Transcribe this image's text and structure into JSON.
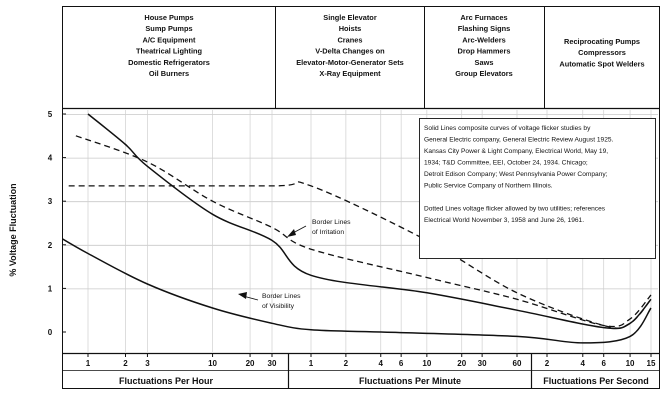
{
  "chart_data": {
    "type": "line",
    "ylabel": "% Voltage Fluctuation",
    "yticks": [
      "0",
      "1",
      "2",
      "3",
      "4",
      "5"
    ],
    "ylim": [
      -0.5,
      5
    ],
    "x_sections": [
      {
        "label": "Fluctuations Per Hour",
        "ticks": [
          "1",
          "2",
          "3",
          "10",
          "20",
          "30"
        ]
      },
      {
        "label": "Fluctuations Per Minute",
        "ticks": [
          "1",
          "2",
          "4",
          "6",
          "10",
          "20",
          "30",
          "60"
        ]
      },
      {
        "label": "Fluctuations Per Second",
        "ticks": [
          "2",
          "4",
          "6",
          "10",
          "15"
        ]
      }
    ],
    "categories": [
      [
        "House Pumps",
        "Sump Pumps",
        "A/C Equipment",
        "Theatrical Lighting",
        "Domestic Refrigerators",
        "Oil Burners"
      ],
      [
        "Single Elevator",
        "Hoists",
        "Cranes",
        "V-Delta Changes on",
        "Elevator-Motor-Generator Sets",
        "X-Ray Equipment"
      ],
      [
        "Arc Furnaces",
        "Flashing Signs",
        "Arc-Welders",
        "Drop Hammers",
        "Saws",
        "Group Elevators"
      ],
      [
        "Reciprocating Pumps",
        "Compressors",
        "Automatic Spot Welders"
      ]
    ],
    "note": [
      "Solid Lines composite curves of voltage flicker studies by",
      "General Electric company, General Electric Review August 1925.",
      "Kansas City Power & Light Company, Electrical World, May 19,",
      "1934; T&D Committee, EEI, October 24, 1934. Chicago;",
      "Detroit Edison Company; West Pennsylvania Power Company;",
      "Public Service Company of Northern Illinois.",
      "",
      "Dotted Lines voltage flicker allowed by two utilities; references",
      "Electrical World November 3, 1958 and June 26, 1961."
    ],
    "annotations": {
      "irritation": [
        "Border Lines",
        "of Irritation"
      ],
      "visibility": [
        "Border Lines",
        "of Visibility"
      ]
    },
    "series": [
      {
        "style": "solid",
        "points": [
          {
            "x": "1/hr",
            "y": 5.0
          },
          {
            "x": "2/hr",
            "y": 4.3
          },
          {
            "x": "3/hr",
            "y": 3.8
          },
          {
            "x": "10/hr",
            "y": 2.7
          },
          {
            "x": "30/hr",
            "y": 2.1
          },
          {
            "x": "1/min",
            "y": 1.3
          },
          {
            "x": "10/min",
            "y": 0.9
          },
          {
            "x": "60/min",
            "y": 0.5
          },
          {
            "x": "6/sec",
            "y": 0.1
          },
          {
            "x": "10/sec",
            "y": 0.2
          },
          {
            "x": "15/sec",
            "y": 0.75
          }
        ]
      },
      {
        "style": "solid",
        "points": [
          {
            "x": "0.5/hr",
            "y": 2.3
          },
          {
            "x": "1/hr",
            "y": 1.8
          },
          {
            "x": "3/hr",
            "y": 1.1
          },
          {
            "x": "10/hr",
            "y": 0.55
          },
          {
            "x": "30/hr",
            "y": 0.2
          },
          {
            "x": "1/min",
            "y": 0.05
          },
          {
            "x": "4/min",
            "y": 0.0
          },
          {
            "x": "60/min",
            "y": -0.1
          },
          {
            "x": "4/sec",
            "y": -0.25
          },
          {
            "x": "10/sec",
            "y": -0.1
          },
          {
            "x": "15/sec",
            "y": 0.55
          }
        ]
      },
      {
        "style": "dashed",
        "points": [
          {
            "x": "0.8/hr",
            "y": 4.5
          },
          {
            "x": "3/hr",
            "y": 3.9
          },
          {
            "x": "10/hr",
            "y": 3.0
          },
          {
            "x": "30/hr",
            "y": 2.4
          },
          {
            "x": "1/min",
            "y": 1.9
          },
          {
            "x": "10/min",
            "y": 1.25
          },
          {
            "x": "60/min",
            "y": 0.75
          },
          {
            "x": "6/sec",
            "y": 0.15
          },
          {
            "x": "10/sec",
            "y": 0.3
          },
          {
            "x": "15/sec",
            "y": 0.85
          }
        ]
      },
      {
        "style": "dashed",
        "points": [
          {
            "x": "0.7/hr",
            "y": 3.35
          },
          {
            "x": "30/hr",
            "y": 3.35
          },
          {
            "x": "1/min",
            "y": 3.35
          },
          {
            "x": "10/min",
            "y": 2.1
          },
          {
            "x": "60/min",
            "y": 0.9
          },
          {
            "x": "6/sec",
            "y": 0.15
          },
          {
            "x": "10/sec",
            "y": 0.2
          },
          {
            "x": "15/sec",
            "y": 0.75
          }
        ]
      }
    ]
  }
}
